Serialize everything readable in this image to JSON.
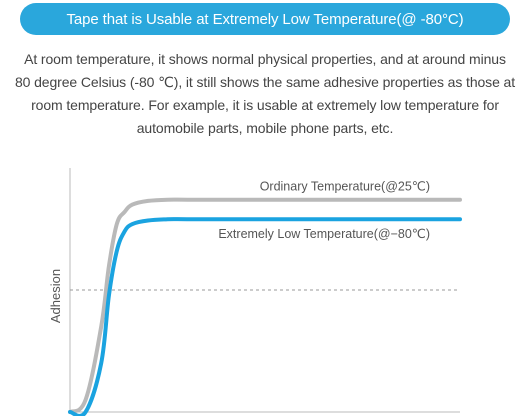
{
  "banner": {
    "title": "Tape that is Usable at Extremely Low Temperature(@ -80°C)"
  },
  "description": {
    "lines": [
      "At room temperature, it shows normal physical properties, and at around minus",
      "80 degree Celsius (-80 ℃), it still shows the same adhesive properties as those at",
      "room temperature. For example, it is usable at extremely low temperature for",
      "automobile parts, mobile phone parts, etc."
    ]
  },
  "colors": {
    "banner": "#2aa7dc",
    "ordinary_line": "#b9b9b9",
    "low_temp_line": "#1aa3e0",
    "axis": "#bbbbbb",
    "reference_line": "#999999",
    "text": "#444444",
    "label_text": "#555555"
  },
  "chart_data": {
    "type": "line",
    "xlabel": "",
    "ylabel": "Adhesion",
    "xlim": [
      0,
      1
    ],
    "ylim": [
      0,
      1
    ],
    "grid": false,
    "reference_line": {
      "style": "dashed",
      "y": 0.5
    },
    "series": [
      {
        "name": "Ordinary Temperature(@25℃)",
        "x": [
          0,
          0.04,
          0.08,
          0.1,
          0.12,
          0.14,
          0.16,
          0.2,
          0.25,
          0.3,
          0.4,
          0.5,
          0.6,
          0.7,
          0.8,
          0.9,
          1.0
        ],
        "values": [
          0.0,
          0.05,
          0.35,
          0.6,
          0.77,
          0.82,
          0.85,
          0.865,
          0.87,
          0.87,
          0.87,
          0.87,
          0.87,
          0.87,
          0.87,
          0.87,
          0.87
        ]
      },
      {
        "name": "Extremely Low Temperature(@−80℃)",
        "x": [
          0,
          0.04,
          0.08,
          0.1,
          0.12,
          0.14,
          0.16,
          0.2,
          0.25,
          0.3,
          0.4,
          0.5,
          0.6,
          0.7,
          0.8,
          0.9,
          1.0
        ],
        "values": [
          0.0,
          0.0,
          0.2,
          0.48,
          0.66,
          0.74,
          0.77,
          0.785,
          0.79,
          0.79,
          0.79,
          0.79,
          0.79,
          0.79,
          0.79,
          0.79,
          0.79
        ]
      }
    ]
  }
}
